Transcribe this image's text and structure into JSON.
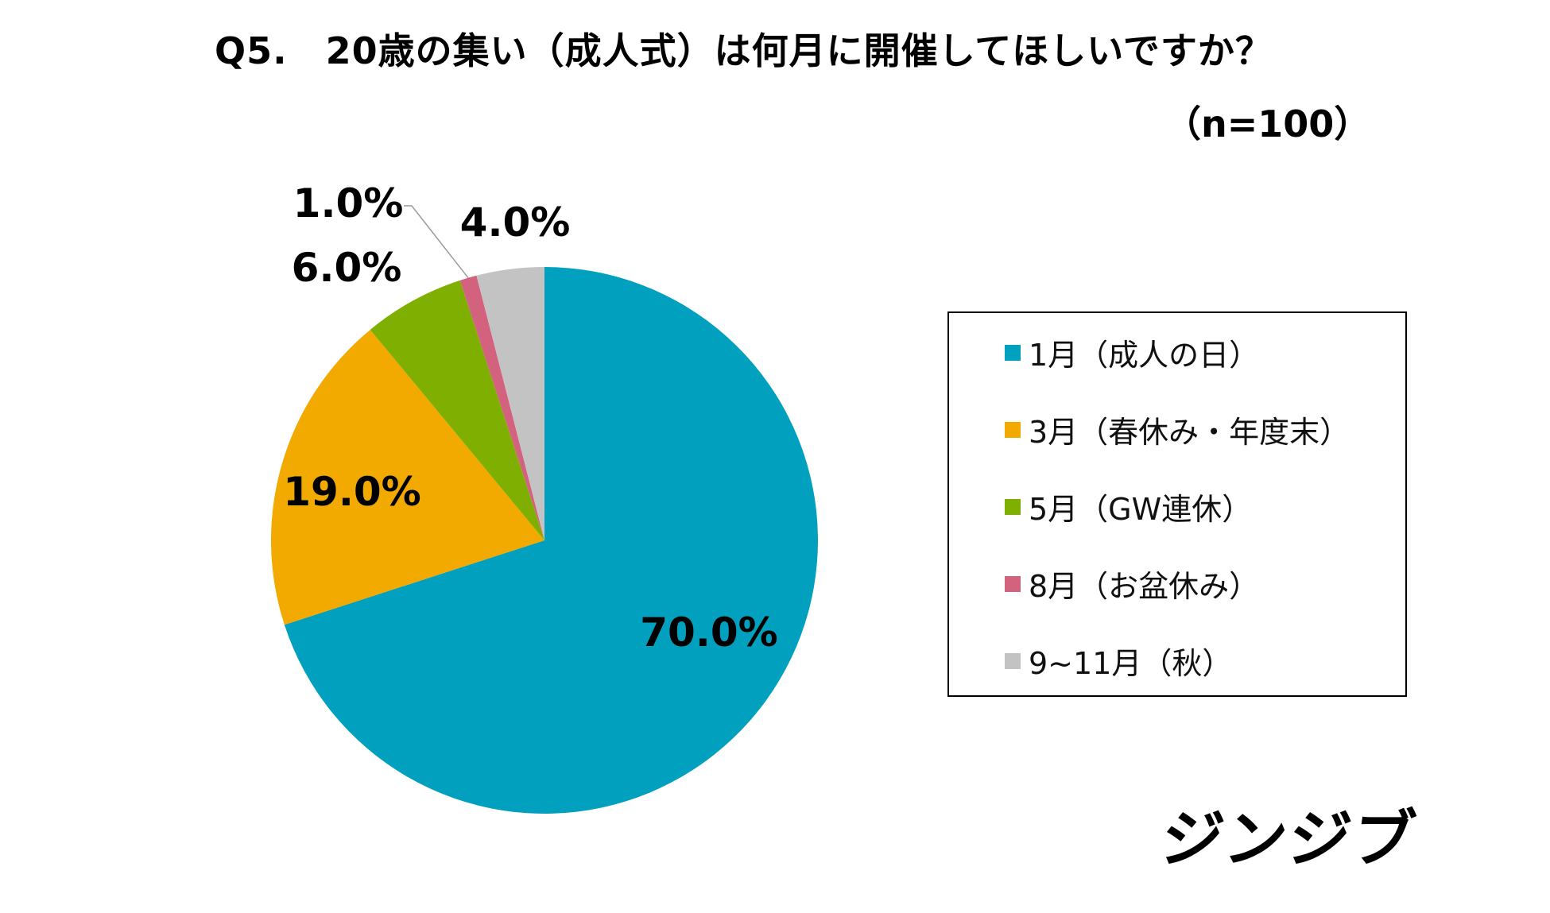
{
  "title": {
    "question_number": "Q5.",
    "text": "20歳の集い（成人式）は何月に開催してほしいですか？"
  },
  "sample_size": "（n=100）",
  "brand": "ジンジブ",
  "chart_data": {
    "type": "pie",
    "start_angle_deg": 0,
    "direction": "clockwise",
    "legend_position": "right",
    "categories": [
      "1月（成人の日）",
      "3月（春休み・年度末）",
      "5月（GW連休）",
      "8月（お盆休み）",
      "9~11月（秋）"
    ],
    "values": [
      70.0,
      19.0,
      6.0,
      1.0,
      4.0
    ],
    "labels": [
      "70.0%",
      "19.0%",
      "6.0%",
      "1.0%",
      "4.0%"
    ],
    "colors": [
      "#00A0BE",
      "#F2A900",
      "#7FAF00",
      "#D3627F",
      "#C3C3C3"
    ]
  }
}
